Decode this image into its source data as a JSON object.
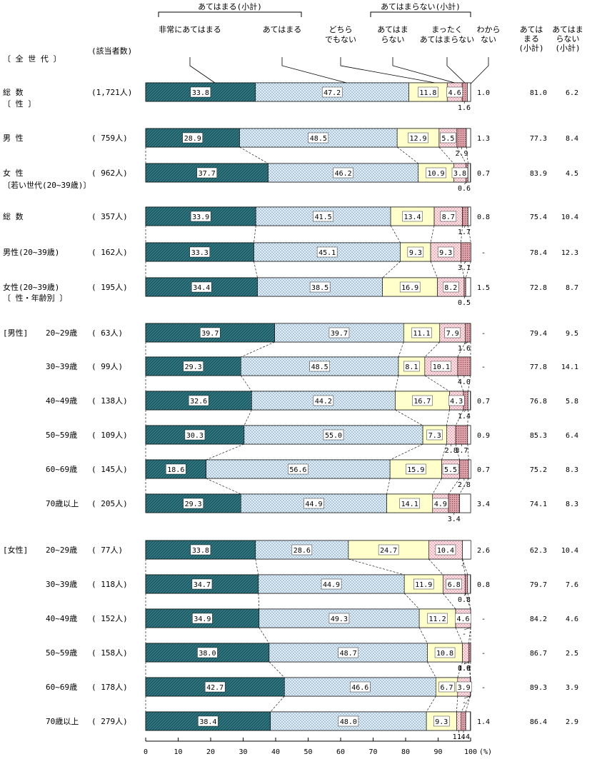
{
  "chart_data": {
    "type": "stacked-bar-horizontal",
    "header": {
      "group_agree": "あてはまる(小計)",
      "group_disagree": "あてはまらない(小計)",
      "categories": [
        "非常にあてはまる",
        "あてはまる",
        "どちらでもない",
        "あてはまらない",
        "まったくあてはまらない",
        "わからない"
      ],
      "category_lines": [
        [
          "非常にあてはまる"
        ],
        [
          "あてはまる"
        ],
        [
          "どちら",
          "でもない"
        ],
        [
          "あてはま",
          "らない"
        ],
        [
          "まったく",
          "あてはまらない"
        ],
        [
          "わから",
          "ない"
        ]
      ],
      "count_label": "(該当者数)",
      "sub1_lines": [
        "あては",
        "まる",
        "(小計)"
      ],
      "sub2_lines": [
        "あてはま",
        "らない",
        "(小計)"
      ]
    },
    "colors": {
      "cat1": "#2f7a84",
      "cat2": "#dfeef8",
      "cat3": "#ffffcc",
      "cat4": "#f8d8dc",
      "cat5": "#d9a0a8",
      "cat6": "#ffffff"
    },
    "sections": [
      {
        "label": "〔 全 世 代 〕"
      },
      {
        "label": "〔 性 〕"
      },
      {
        "label": "〔若い世代(20~39歳)〕"
      },
      {
        "label": "〔 性・年齢別 〕"
      }
    ],
    "groups": [
      {
        "label": "[男性]"
      },
      {
        "label": "[女性]"
      }
    ],
    "rows": [
      {
        "label": "総 数",
        "n": "(1,721人)",
        "values": [
          33.8,
          47.2,
          11.8,
          4.6,
          1.6,
          1.0
        ],
        "texts": [
          "33.8",
          "47.2",
          "11.8",
          "4.6",
          "1.6",
          "1.0"
        ],
        "sub1": "81.0",
        "sub2": "6.2"
      },
      {
        "label": "男 性",
        "n": "( 759人)",
        "values": [
          28.9,
          48.5,
          12.9,
          5.5,
          2.9,
          1.3
        ],
        "texts": [
          "28.9",
          "48.5",
          "12.9",
          "5.5",
          "2.9",
          "1.3"
        ],
        "sub1": "77.3",
        "sub2": "8.4"
      },
      {
        "label": "女 性",
        "n": "( 962人)",
        "values": [
          37.7,
          46.2,
          10.9,
          3.8,
          0.6,
          0.7
        ],
        "texts": [
          "37.7",
          "46.2",
          "10.9",
          "3.8",
          "0.6",
          "0.7"
        ],
        "sub1": "83.9",
        "sub2": "4.5"
      },
      {
        "label": "総 数",
        "n": "( 357人)",
        "values": [
          33.9,
          41.5,
          13.4,
          8.7,
          1.7,
          0.8
        ],
        "texts": [
          "33.9",
          "41.5",
          "13.4",
          "8.7",
          "1.7",
          "0.8"
        ],
        "sub1": "75.4",
        "sub2": "10.4"
      },
      {
        "label": "男性(20~39歳)",
        "n": "( 162人)",
        "values": [
          33.3,
          45.1,
          9.3,
          9.3,
          3.1,
          0
        ],
        "texts": [
          "33.3",
          "45.1",
          "9.3",
          "9.3",
          "3.1",
          "-"
        ],
        "sub1": "78.4",
        "sub2": "12.3"
      },
      {
        "label": "女性(20~39歳)",
        "n": "( 195人)",
        "values": [
          34.4,
          38.5,
          16.9,
          8.2,
          0.5,
          1.5
        ],
        "texts": [
          "34.4",
          "38.5",
          "16.9",
          "8.2",
          "0.5",
          "1.5"
        ],
        "sub1": "72.8",
        "sub2": "8.7"
      },
      {
        "label": "20~29歳",
        "n": "( 63人)",
        "values": [
          39.7,
          39.7,
          11.1,
          7.9,
          1.6,
          0
        ],
        "texts": [
          "39.7",
          "39.7",
          "11.1",
          "7.9",
          "1.6",
          "-"
        ],
        "sub1": "79.4",
        "sub2": "9.5"
      },
      {
        "label": "30~39歳",
        "n": "( 99人)",
        "values": [
          29.3,
          48.5,
          8.1,
          10.1,
          4.0,
          0
        ],
        "texts": [
          "29.3",
          "48.5",
          "8.1",
          "10.1",
          "4.0",
          "-"
        ],
        "sub1": "77.8",
        "sub2": "14.1"
      },
      {
        "label": "40~49歳",
        "n": "( 138人)",
        "values": [
          32.6,
          44.2,
          16.7,
          4.3,
          1.4,
          0.7
        ],
        "texts": [
          "32.6",
          "44.2",
          "16.7",
          "4.3",
          "1.4",
          "0.7"
        ],
        "sub1": "76.8",
        "sub2": "5.8"
      },
      {
        "label": "50~59歳",
        "n": "( 109人)",
        "values": [
          30.3,
          55.0,
          7.3,
          2.8,
          3.7,
          0.9
        ],
        "texts": [
          "30.3",
          "55.0",
          "7.3",
          "2.8",
          "3.7",
          "0.9"
        ],
        "sub1": "85.3",
        "sub2": "6.4"
      },
      {
        "label": "60~69歳",
        "n": "( 145人)",
        "values": [
          18.6,
          56.6,
          15.9,
          5.5,
          2.8,
          0.7
        ],
        "texts": [
          "18.6",
          "56.6",
          "15.9",
          "5.5",
          "2.8",
          "0.7"
        ],
        "sub1": "75.2",
        "sub2": "8.3"
      },
      {
        "label": "70歳以上",
        "n": "( 205人)",
        "values": [
          29.3,
          44.9,
          14.1,
          4.9,
          3.4,
          3.4
        ],
        "texts": [
          "29.3",
          "44.9",
          "14.1",
          "4.9",
          "3.4",
          "3.4"
        ],
        "sub1": "74.1",
        "sub2": "8.3"
      },
      {
        "label": "20~29歳",
        "n": "( 77人)",
        "values": [
          33.8,
          28.6,
          24.7,
          10.4,
          0,
          2.6
        ],
        "texts": [
          "33.8",
          "28.6",
          "24.7",
          "10.4",
          "-",
          "2.6"
        ],
        "sub1": "62.3",
        "sub2": "10.4"
      },
      {
        "label": "30~39歳",
        "n": "( 118人)",
        "values": [
          34.7,
          44.9,
          11.9,
          6.8,
          0.8,
          0.8
        ],
        "texts": [
          "34.7",
          "44.9",
          "11.9",
          "6.8",
          "0.8",
          "0.8"
        ],
        "sub1": "79.7",
        "sub2": "7.6"
      },
      {
        "label": "40~49歳",
        "n": "( 152人)",
        "values": [
          34.9,
          49.3,
          11.2,
          4.6,
          0,
          0
        ],
        "texts": [
          "34.9",
          "49.3",
          "11.2",
          "4.6",
          "-",
          "-"
        ],
        "sub1": "84.2",
        "sub2": "4.6"
      },
      {
        "label": "50~59歳",
        "n": "( 158人)",
        "values": [
          38.0,
          48.7,
          10.8,
          1.9,
          0.6,
          0
        ],
        "texts": [
          "38.0",
          "48.7",
          "10.8",
          "1.9",
          "0.6",
          "-"
        ],
        "sub1": "86.7",
        "sub2": "2.5"
      },
      {
        "label": "60~69歳",
        "n": "( 178人)",
        "values": [
          42.7,
          46.6,
          6.7,
          3.9,
          0,
          0
        ],
        "texts": [
          "42.7",
          "46.6",
          "6.7",
          "3.9",
          "-",
          "-"
        ],
        "sub1": "89.3",
        "sub2": "3.9"
      },
      {
        "label": "70歳以上",
        "n": "( 279人)",
        "values": [
          38.4,
          48.0,
          9.3,
          1.4,
          1.4,
          1.4
        ],
        "texts": [
          "38.4",
          "48.0",
          "9.3",
          "1.4",
          "1.4",
          "1.4"
        ],
        "sub1": "86.4",
        "sub2": "2.9"
      }
    ],
    "x_axis": {
      "ticks": [
        0,
        10,
        20,
        30,
        40,
        50,
        60,
        70,
        80,
        90,
        100
      ],
      "unit": "(%)",
      "range": [
        0,
        100
      ]
    }
  }
}
